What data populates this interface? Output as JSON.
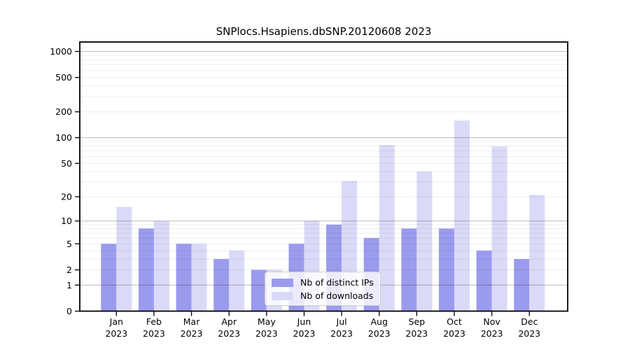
{
  "title": "SNPlocs.Hsapiens.dbSNP.20120608 2023",
  "colors": {
    "bar_distinct_ips": "#9b9bee",
    "bar_downloads": "#dadaf8",
    "axis": "#000000",
    "background": "#ffffff",
    "grid_major_rgba": "rgba(0,0,0,0.27)",
    "grid_minor_rgba": "rgba(0,0,0,0.07)",
    "tick_text": "#000000"
  },
  "legend": {
    "items": [
      {
        "label": "Nb of distinct IPs",
        "swatch": "bar-swatch-distinct-ips"
      },
      {
        "label": "Nb of downloads",
        "swatch": "bar-swatch-downloads"
      }
    ],
    "position": "lower center"
  },
  "chart_data": {
    "type": "bar",
    "title": "SNPlocs.Hsapiens.dbSNP.20120608 2023",
    "xlabel": "",
    "ylabel": "",
    "scale": "log10(1+y)",
    "ylim": [
      0,
      1000
    ],
    "grid": {
      "enabled": true,
      "major": [
        1,
        10,
        100,
        1000
      ],
      "minor": [
        2,
        3,
        4,
        5,
        6,
        7,
        8,
        9,
        20,
        30,
        40,
        50,
        60,
        70,
        80,
        90,
        200,
        300,
        400,
        500,
        600,
        700,
        800,
        900
      ]
    },
    "yticks": [
      0,
      1,
      2,
      5,
      10,
      20,
      50,
      100,
      200,
      500,
      1000
    ],
    "categories": [
      "Jan",
      "Feb",
      "Mar",
      "Apr",
      "May",
      "Jun",
      "Jul",
      "Aug",
      "Sep",
      "Oct",
      "Nov",
      "Dec"
    ],
    "year": "2023",
    "legend_position": "lower center",
    "series": [
      {
        "name": "Nb of distinct IPs",
        "color": "#9b9bee",
        "values": [
          5,
          8,
          5,
          3,
          2,
          5,
          9,
          6,
          8,
          8,
          4,
          3
        ]
      },
      {
        "name": "Nb of downloads",
        "color": "#dadaf8",
        "values": [
          15,
          10,
          5,
          4,
          2,
          10,
          31,
          82,
          40,
          158,
          79,
          21
        ]
      }
    ]
  }
}
